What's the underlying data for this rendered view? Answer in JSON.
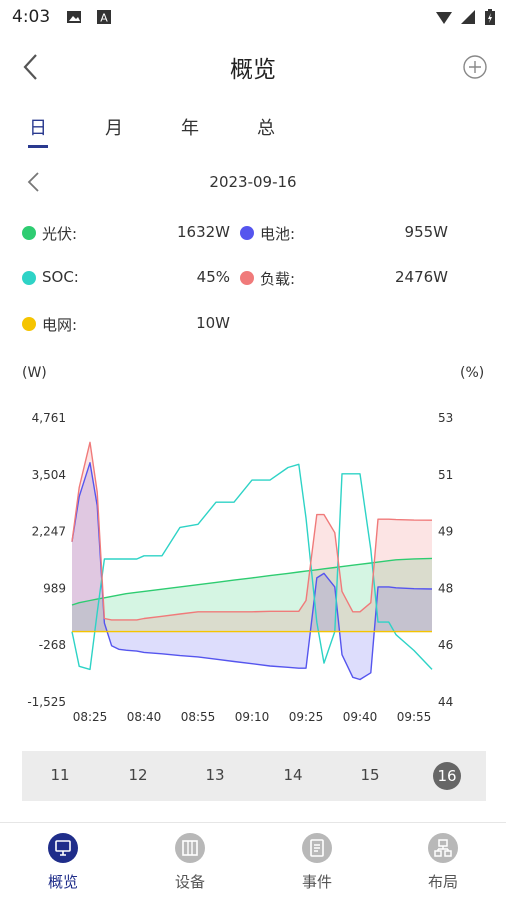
{
  "status": {
    "time": "4:03"
  },
  "header": {
    "title": "概览"
  },
  "tabs": [
    {
      "label": "日",
      "active": true
    },
    {
      "label": "月",
      "active": false
    },
    {
      "label": "年",
      "active": false
    },
    {
      "label": "总",
      "active": false
    }
  ],
  "date": "2023-09-16",
  "legend": [
    {
      "name": "光伏:",
      "value": "1632W",
      "color": "#2ecc71"
    },
    {
      "name": "电池:",
      "value": "955W",
      "color": "#5555ee"
    },
    {
      "name": "SOC:",
      "value": "45%",
      "color": "#2ed3c6"
    },
    {
      "name": "负载:",
      "value": "2476W",
      "color": "#f07a7a"
    },
    {
      "name": "电网:",
      "value": "10W",
      "color": "#f5c400"
    }
  ],
  "units": {
    "left": "(W)",
    "right": "(%)"
  },
  "chart_data": {
    "type": "line",
    "x": [
      "08:20",
      "08:22",
      "08:25",
      "08:27",
      "08:29",
      "08:31",
      "08:33",
      "08:35",
      "08:38",
      "08:40",
      "08:45",
      "08:50",
      "08:55",
      "09:00",
      "09:05",
      "09:10",
      "09:15",
      "09:20",
      "09:23",
      "09:25",
      "09:28",
      "09:30",
      "09:33",
      "09:35",
      "09:38",
      "09:40",
      "09:43",
      "09:45",
      "09:48",
      "09:50",
      "09:55",
      "10:00"
    ],
    "x_ticks": [
      "08:25",
      "08:40",
      "08:55",
      "09:10",
      "09:25",
      "09:40",
      "09:55"
    ],
    "y_left_ticks": [
      "4,761",
      "3,504",
      "2,247",
      "989",
      "-268",
      "-1,525"
    ],
    "y_right_ticks": [
      "53",
      "51",
      "49",
      "48",
      "46",
      "44"
    ],
    "ylim_left": [
      -1525,
      4761
    ],
    "ylim_right": [
      44,
      53
    ],
    "series": [
      {
        "name": "光伏",
        "axis": "left",
        "color": "#2ecc71",
        "fill": true,
        "values": [
          600,
          650,
          700,
          730,
          760,
          790,
          820,
          850,
          880,
          900,
          950,
          1000,
          1050,
          1100,
          1150,
          1200,
          1250,
          1300,
          1330,
          1350,
          1380,
          1400,
          1430,
          1450,
          1480,
          1500,
          1530,
          1550,
          1580,
          1600,
          1620,
          1632
        ]
      },
      {
        "name": "电池",
        "axis": "left",
        "color": "#5555ee",
        "fill": true,
        "values": [
          2000,
          3000,
          3750,
          2800,
          200,
          -300,
          -380,
          -400,
          -420,
          -450,
          -480,
          -520,
          -550,
          -600,
          -650,
          -700,
          -750,
          -780,
          -800,
          -800,
          1200,
          1300,
          1000,
          -500,
          -1000,
          -1050,
          -900,
          1000,
          1000,
          980,
          960,
          955
        ]
      },
      {
        "name": "SOC",
        "axis": "right",
        "color": "#2ed3c6",
        "fill": false,
        "values": [
          46.2,
          45.1,
          45.0,
          46.8,
          48.5,
          48.5,
          48.5,
          48.5,
          48.5,
          48.6,
          48.6,
          49.5,
          49.6,
          50.3,
          50.3,
          51.0,
          51.0,
          51.4,
          51.5,
          49.8,
          46.5,
          45.2,
          46.2,
          51.2,
          51.2,
          51.2,
          48.8,
          46.5,
          46.5,
          46.1,
          45.6,
          45.0
        ]
      },
      {
        "name": "负载",
        "axis": "left",
        "color": "#f07a7a",
        "fill": true,
        "values": [
          2000,
          3200,
          4200,
          3100,
          300,
          270,
          270,
          270,
          270,
          300,
          350,
          400,
          450,
          450,
          450,
          450,
          460,
          460,
          460,
          700,
          2600,
          2600,
          2200,
          900,
          450,
          450,
          650,
          2500,
          2500,
          2490,
          2480,
          2476
        ]
      },
      {
        "name": "电网",
        "axis": "left",
        "color": "#f5c400",
        "fill": false,
        "values": [
          10,
          10,
          10,
          10,
          10,
          10,
          10,
          10,
          10,
          10,
          10,
          10,
          10,
          10,
          10,
          10,
          10,
          10,
          10,
          10,
          10,
          10,
          10,
          10,
          10,
          10,
          10,
          10,
          10,
          10,
          10,
          10
        ]
      }
    ]
  },
  "days": [
    {
      "label": "11",
      "selected": false
    },
    {
      "label": "12",
      "selected": false
    },
    {
      "label": "13",
      "selected": false
    },
    {
      "label": "14",
      "selected": false
    },
    {
      "label": "15",
      "selected": false
    },
    {
      "label": "16",
      "selected": true
    }
  ],
  "bottom_nav": [
    {
      "label": "概览",
      "icon": "monitor-icon",
      "active": true
    },
    {
      "label": "设备",
      "icon": "device-icon",
      "active": false
    },
    {
      "label": "事件",
      "icon": "event-icon",
      "active": false
    },
    {
      "label": "布局",
      "icon": "layout-icon",
      "active": false
    }
  ],
  "colors": {
    "accent": "#1f2d8a",
    "inactive_icon": "#b8b8b8"
  }
}
